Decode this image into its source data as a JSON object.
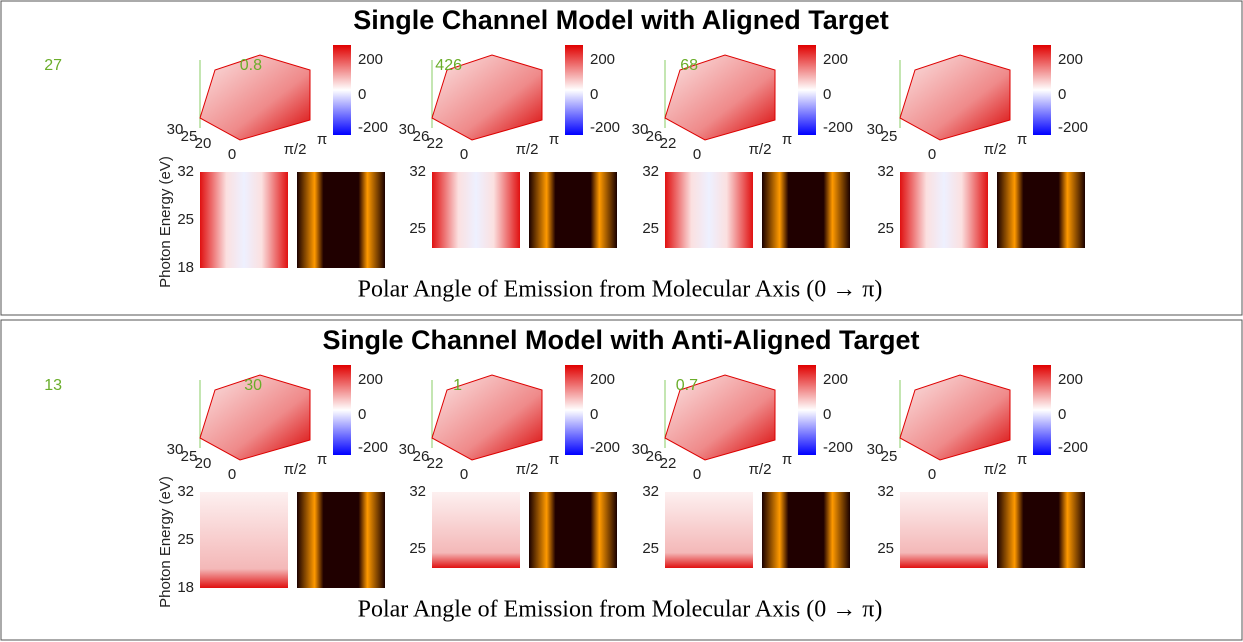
{
  "panels": [
    {
      "title": "Single Channel Model with Aligned Target",
      "y_label": "Photon Energy (eV)",
      "x_label": "Polar Angle of Emission from Molecular Axis (0 → π)",
      "colorbar_ticks": [
        "200",
        "0",
        "-200"
      ],
      "subplots": [
        {
          "z_max": "27",
          "depth_ticks": [
            "30",
            "25",
            "20"
          ],
          "angle_ticks": [
            "0",
            "π/2",
            "π"
          ],
          "map_yticks": [
            "32",
            "25",
            "18"
          ]
        },
        {
          "z_max": "0.8",
          "depth_ticks": [
            "30",
            "26",
            "22"
          ],
          "angle_ticks": [
            "0",
            "π/2",
            "π"
          ],
          "map_yticks": [
            "32",
            "25"
          ]
        },
        {
          "z_max": "426",
          "depth_ticks": [
            "30",
            "26",
            "22"
          ],
          "angle_ticks": [
            "0",
            "π/2",
            "π"
          ],
          "map_yticks": [
            "32",
            "25"
          ]
        },
        {
          "z_max": "68",
          "depth_ticks": [
            "30",
            "25"
          ],
          "angle_ticks": [
            "0",
            "π/2",
            "π"
          ],
          "map_yticks": [
            "32",
            "25"
          ]
        }
      ]
    },
    {
      "title": "Single Channel Model with Anti-Aligned Target",
      "y_label": "Photon Energy (eV)",
      "x_label": "Polar Angle of Emission from Molecular Axis (0 → π)",
      "colorbar_ticks": [
        "200",
        "0",
        "-200"
      ],
      "subplots": [
        {
          "z_max": "13",
          "depth_ticks": [
            "30",
            "25",
            "20"
          ],
          "angle_ticks": [
            "0",
            "π/2",
            "π"
          ],
          "map_yticks": [
            "32",
            "25",
            "18"
          ]
        },
        {
          "z_max": "30",
          "depth_ticks": [
            "30",
            "26",
            "22"
          ],
          "angle_ticks": [
            "0",
            "π/2",
            "π"
          ],
          "map_yticks": [
            "32",
            "25"
          ]
        },
        {
          "z_max": "1",
          "depth_ticks": [
            "30",
            "26",
            "22"
          ],
          "angle_ticks": [
            "0",
            "π/2",
            "π"
          ],
          "map_yticks": [
            "32",
            "25"
          ]
        },
        {
          "z_max": "0.7",
          "depth_ticks": [
            "30",
            "25"
          ],
          "angle_ticks": [
            "0",
            "π/2",
            "π"
          ],
          "map_yticks": [
            "32",
            "25"
          ]
        }
      ]
    }
  ]
}
